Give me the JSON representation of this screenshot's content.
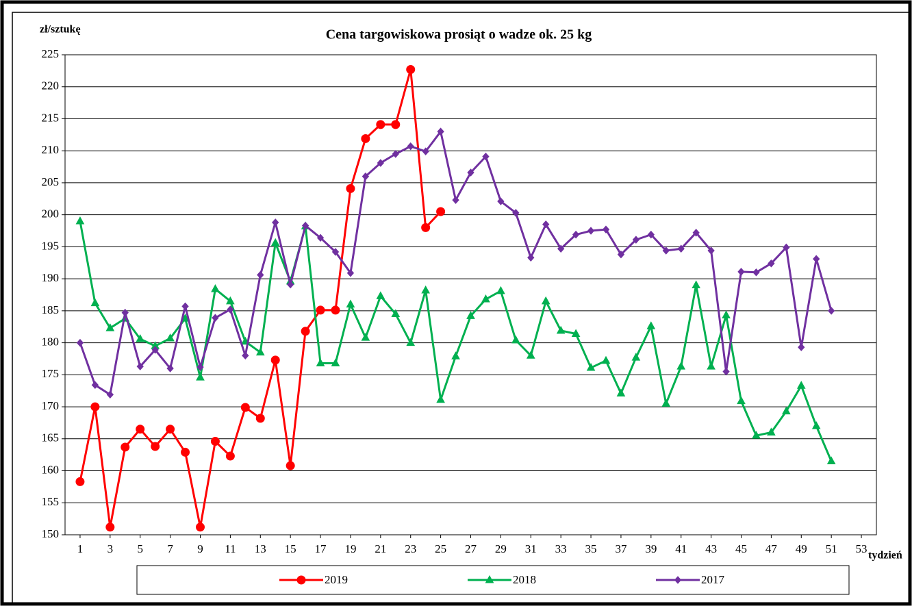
{
  "chart_data": {
    "type": "line",
    "title": "Cena targowiskowa prosiąt o wadze ok. 25 kg",
    "y_label": "zł/sztukę",
    "x_label": "tydzień",
    "x": [
      1,
      2,
      3,
      4,
      5,
      6,
      7,
      8,
      9,
      10,
      11,
      12,
      13,
      14,
      15,
      16,
      17,
      18,
      19,
      20,
      21,
      22,
      23,
      24,
      25,
      26,
      27,
      28,
      29,
      30,
      31,
      32,
      33,
      34,
      35,
      36,
      37,
      38,
      39,
      40,
      41,
      42,
      43,
      44,
      45,
      46,
      47,
      48,
      49,
      50,
      51
    ],
    "xlim": [
      0,
      54
    ],
    "xticks": [
      1,
      3,
      5,
      7,
      9,
      11,
      13,
      15,
      17,
      19,
      21,
      23,
      25,
      27,
      29,
      31,
      33,
      35,
      37,
      39,
      41,
      43,
      45,
      47,
      49,
      51,
      53
    ],
    "ylim": [
      150,
      225
    ],
    "yticks": [
      150,
      155,
      160,
      165,
      170,
      175,
      180,
      185,
      190,
      195,
      200,
      205,
      210,
      215,
      220,
      225
    ],
    "grid": true,
    "series": [
      {
        "name": "2019",
        "color": "#ff0000",
        "marker": "circle",
        "values": [
          158.3,
          170,
          151.2,
          163.7,
          166.5,
          163.8,
          166.5,
          162.9,
          151.2,
          164.6,
          162.3,
          169.9,
          168.2,
          177.3,
          160.8,
          181.8,
          185.1,
          185.1,
          204.1,
          211.9,
          214.1,
          214.1,
          222.7,
          198,
          200.5,
          null,
          null,
          null,
          null,
          null,
          null,
          null,
          null,
          null,
          null,
          null,
          null,
          null,
          null,
          null,
          null,
          null,
          null,
          null,
          null,
          null,
          null,
          null,
          null,
          null,
          null
        ]
      },
      {
        "name": "2018",
        "color": "#00b050",
        "marker": "triangle",
        "values": [
          199,
          186.2,
          182.3,
          183.8,
          180.6,
          179.5,
          180.7,
          183.8,
          174.6,
          188.4,
          186.5,
          180.2,
          178.5,
          195.6,
          189.6,
          198.2,
          176.8,
          176.8,
          186,
          180.8,
          187.3,
          184.5,
          180,
          188.2,
          171.1,
          177.9,
          184.2,
          186.8,
          188.1,
          180.4,
          178,
          186.5,
          181.9,
          181.4,
          176.1,
          177.2,
          172.1,
          177.7,
          182.6,
          170.5,
          176.3,
          189,
          176.3,
          184.3,
          170.9,
          165.5,
          166,
          169.3,
          173.3,
          167,
          161.5
        ]
      },
      {
        "name": "2017",
        "color": "#7030a0",
        "marker": "diamond",
        "values": [
          180,
          173.4,
          171.9,
          184.7,
          176.3,
          178.9,
          176,
          185.7,
          176.2,
          183.9,
          185.2,
          178,
          190.6,
          198.8,
          189.1,
          198.3,
          196.4,
          194.2,
          190.9,
          206,
          208.1,
          209.5,
          210.7,
          209.9,
          213,
          202.3,
          206.6,
          209.1,
          202.1,
          200.3,
          193.3,
          198.5,
          194.7,
          196.9,
          197.5,
          197.7,
          193.8,
          196.1,
          196.9,
          194.4,
          194.7,
          197.2,
          194.4,
          175.5,
          191.1,
          191,
          192.4,
          194.9,
          179.3,
          193.1,
          185
        ]
      }
    ]
  }
}
